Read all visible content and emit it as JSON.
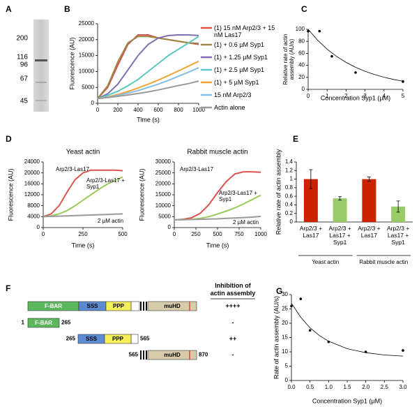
{
  "gel": {
    "label": "A",
    "markers": [
      200,
      116,
      96,
      67,
      45
    ]
  },
  "diagram": {
    "label": "F",
    "header": "Inhibition of actin assembly",
    "constructs": [
      {
        "domains": [
          "F-BAR",
          "SSS",
          "PPP",
          "muHD"
        ],
        "inhibition": "++++"
      },
      {
        "start": 1,
        "end": 265,
        "domains": [
          "F-BAR"
        ],
        "inhibition": "-"
      },
      {
        "start": 265,
        "end": 565,
        "domains": [
          "SSS",
          "PPP"
        ],
        "inhibition": "++"
      },
      {
        "start": 565,
        "end": 870,
        "domains": [
          "muHD"
        ],
        "inhibition": "-"
      }
    ]
  },
  "chart_data": [
    {
      "type": "line",
      "label": "B",
      "xlabel": "Time (s)",
      "ylabel": "Fluorescence (AU)",
      "legend": "right",
      "x": [
        0,
        100,
        200,
        300,
        400,
        500,
        600,
        700,
        800,
        900,
        1000
      ],
      "xlim": [
        0,
        1000
      ],
      "xticks": [
        0,
        200,
        400,
        600,
        800,
        1000
      ],
      "ylim": [
        0,
        25000
      ],
      "yticks": [
        0,
        5000,
        10000,
        15000,
        20000,
        25000
      ],
      "series": [
        {
          "name": "(1) 15 nM Arp2/3 + 15 nM Las17",
          "color": "#d9534f",
          "values": [
            1500,
            5000,
            12000,
            18500,
            21500,
            21500,
            20500,
            20000,
            19500,
            19000,
            18500
          ]
        },
        {
          "name": "(1) + 0.6 µM Syp1",
          "color": "#9a8645",
          "values": [
            1500,
            5500,
            13000,
            19000,
            21000,
            21000,
            20500,
            20000,
            19500,
            19000,
            18800
          ]
        },
        {
          "name": "(1) + 1.25 µM Syp1",
          "color": "#7f6fb0",
          "values": [
            1500,
            3000,
            6000,
            10500,
            15000,
            18500,
            20500,
            21300,
            21500,
            21500,
            21300
          ]
        },
        {
          "name": "(1) + 2.5 µM Syp1",
          "color": "#5cc7c2",
          "values": [
            1500,
            2500,
            3800,
            5500,
            7500,
            10000,
            12500,
            15000,
            17000,
            19000,
            21000
          ]
        },
        {
          "name": "(1) + 5 µM Syp1",
          "color": "#f0a436",
          "values": [
            1500,
            2000,
            2800,
            3700,
            4800,
            6000,
            7300,
            8700,
            10200,
            11700,
            13200
          ]
        },
        {
          "name": "15 nM Arp2/3",
          "color": "#86bde3",
          "values": [
            1500,
            1900,
            2500,
            3200,
            4000,
            5000,
            6000,
            7200,
            8500,
            9800,
            11200
          ]
        },
        {
          "name": "Actin alone",
          "color": "#9a9a9a",
          "values": [
            1500,
            1800,
            2200,
            2600,
            3100,
            3600,
            4200,
            4900,
            5600,
            6200,
            7000
          ]
        }
      ]
    },
    {
      "type": "scatter",
      "label": "C",
      "xlabel": "Concentration Syp1 (µM)",
      "ylabel": "Relative rate of actin assembly (AU/s)",
      "x": [
        0,
        0.6,
        1.25,
        2.5,
        5
      ],
      "values": [
        97,
        97,
        55,
        28,
        13
      ],
      "color": "#000000",
      "fit": {
        "x": [
          0,
          0.5,
          1,
          1.5,
          2,
          2.5,
          3,
          3.5,
          4,
          4.5,
          5
        ],
        "values": [
          100,
          81.9,
          67,
          54.9,
          44.9,
          36.8,
          30.1,
          24.7,
          20.2,
          16.5,
          13.5
        ]
      },
      "xlim": [
        0,
        5
      ],
      "xticks": [
        0,
        1,
        2,
        3,
        4,
        5
      ],
      "ylim": [
        0,
        100
      ],
      "yticks": [
        0,
        20,
        40,
        60,
        80,
        100
      ]
    },
    {
      "type": "line",
      "label": "D",
      "title": "Yeast actin",
      "xlabel": "Time (s)",
      "ylabel": "Fluorescence (AU)",
      "legend": "inline",
      "x": [
        0,
        50,
        100,
        150,
        200,
        250,
        300,
        350,
        400,
        450,
        500
      ],
      "xlim": [
        0,
        500
      ],
      "xticks": [
        0,
        250,
        500
      ],
      "ylim": [
        0,
        24000
      ],
      "yticks": [
        0,
        4000,
        8000,
        12000,
        16000,
        20000,
        24000
      ],
      "series": [
        {
          "name": "Arp2/3-Las17",
          "color": "#d9534f",
          "values": [
            4000,
            5000,
            8000,
            13000,
            17500,
            20000,
            21000,
            21000,
            21000,
            21000,
            20800
          ]
        },
        {
          "name": "Arp2/3-Las17 + Syp1",
          "color": "#9cc95a",
          "values": [
            4000,
            4300,
            5000,
            6200,
            8000,
            10000,
            12000,
            14000,
            15800,
            17200,
            18500
          ]
        },
        {
          "name": "2 µM actin",
          "color": "#9a9a9a",
          "values": [
            4000,
            4100,
            4200,
            4300,
            4400,
            4500,
            4600,
            4700,
            4800,
            4900,
            5000
          ]
        }
      ]
    },
    {
      "type": "line",
      "title": "Rabbit muscle actin",
      "xlabel": "Time (s)",
      "ylabel": "Fluorescence (AU)",
      "legend": "inline",
      "x": [
        0,
        100,
        200,
        300,
        400,
        500,
        600,
        700,
        800,
        900,
        1000
      ],
      "xlim": [
        0,
        1000
      ],
      "xticks": [
        0,
        250,
        500,
        750,
        1000
      ],
      "ylim": [
        0,
        30000
      ],
      "yticks": [
        0,
        5000,
        10000,
        15000,
        20000,
        25000,
        30000
      ],
      "series": [
        {
          "name": "Arp2/3-Las17",
          "color": "#d9534f",
          "values": [
            3500,
            3800,
            4500,
            6500,
            10500,
            16000,
            21000,
            24500,
            25500,
            25500,
            25300
          ]
        },
        {
          "name": "Arp2/3-Las17 + Syp1",
          "color": "#9cc95a",
          "values": [
            3500,
            3600,
            3800,
            4200,
            5000,
            6200,
            7500,
            9000,
            10800,
            12800,
            14800
          ]
        },
        {
          "name": "2 µM actin",
          "color": "#9a9a9a",
          "values": [
            3500,
            3600,
            3700,
            3800,
            3900,
            4000,
            4200,
            4400,
            4600,
            4800,
            5100
          ]
        }
      ]
    },
    {
      "type": "bar",
      "label": "E",
      "ylabel": "Relative rate of actin assembly",
      "categories": [
        "Arp2/3 + Las17",
        "Arp2/3 + Las17 + Syp1",
        "Arp2/3 + Las17",
        "Arp2/3 + Las17 + Syp1"
      ],
      "values": [
        1,
        0.55,
        1,
        0.36
      ],
      "errors": [
        0.22,
        0.04,
        0.05,
        0.13
      ],
      "colors": [
        "#cc2200",
        "#99cc66",
        "#cc2200",
        "#99cc66"
      ],
      "groups": [
        "Yeast actin",
        "Rabbit muscle actin"
      ],
      "ylim": [
        0,
        1.4
      ],
      "yticks": [
        0,
        0.2,
        0.4,
        0.6,
        0.8,
        1,
        1.2,
        1.4
      ]
    },
    {
      "type": "scatter",
      "label": "G",
      "xlabel": "Concentration Syp1 (µM)",
      "ylabel": "Rate of actin assembly (AU/s)",
      "x": [
        0,
        0.25,
        0.5,
        1,
        2,
        3
      ],
      "values": [
        26,
        28.5,
        17.5,
        13.5,
        10,
        10.5
      ],
      "color": "#000000",
      "fit": {
        "x": [
          0,
          0.25,
          0.5,
          0.75,
          1,
          1.5,
          2,
          2.5,
          3
        ],
        "values": [
          27,
          22.1,
          18.4,
          15.7,
          13.7,
          11.1,
          9.7,
          8.9,
          8.5
        ]
      },
      "xlim": [
        0,
        3
      ],
      "xticks": [
        {
          "value": 0,
          "label": "0.0"
        },
        {
          "value": 0.5,
          "label": "0.5"
        },
        {
          "value": 1,
          "label": "1.0"
        },
        {
          "value": 1.5,
          "label": "1.5"
        },
        {
          "value": 2,
          "label": "2.0"
        },
        {
          "value": 2.5,
          "label": "2.5"
        },
        {
          "value": 3,
          "label": "3.0"
        }
      ],
      "ylim": [
        0,
        30
      ],
      "yticks": [
        0,
        5,
        10,
        15,
        20,
        25,
        30
      ]
    }
  ]
}
